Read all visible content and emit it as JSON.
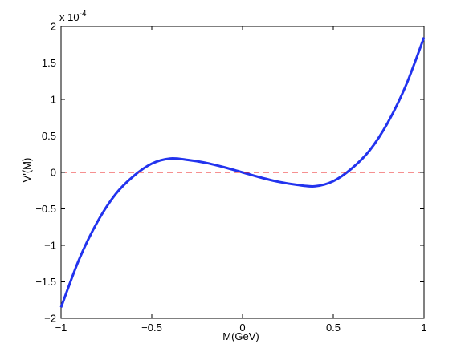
{
  "chart_data": {
    "type": "line",
    "title": "",
    "xlabel": "M(GeV)",
    "ylabel": "V'(M)",
    "exponent_label": "x 10",
    "exponent_power": "-4",
    "xlim": [
      -1,
      1
    ],
    "ylim": [
      -2,
      2
    ],
    "x_ticks": [
      -1,
      -0.5,
      0,
      0.5,
      1
    ],
    "x_tick_labels": [
      "−1",
      "−0.5",
      "0",
      "0.5",
      "1"
    ],
    "y_ticks": [
      -2,
      -1.5,
      -1,
      -0.5,
      0,
      0.5,
      1,
      1.5,
      2
    ],
    "y_tick_labels": [
      "−2",
      "−1.5",
      "−1",
      "−0.5",
      "0",
      "0.5",
      "1",
      "1.5",
      "2"
    ],
    "grid": false,
    "series": [
      {
        "color": "#2233ee",
        "style": "solid",
        "x": [
          -1.0,
          -0.9,
          -0.8,
          -0.7,
          -0.6,
          -0.5,
          -0.4,
          -0.3,
          -0.2,
          -0.1,
          0.0,
          0.1,
          0.2,
          0.3,
          0.4,
          0.5,
          0.6,
          0.7,
          0.8,
          0.9,
          1.0
        ],
        "y": [
          -1.85,
          -1.19,
          -0.68,
          -0.3,
          -0.05,
          0.12,
          0.19,
          0.17,
          0.13,
          0.07,
          0.0,
          -0.07,
          -0.13,
          -0.17,
          -0.19,
          -0.12,
          0.05,
          0.3,
          0.68,
          1.19,
          1.85
        ]
      },
      {
        "color": "#ee2222",
        "style": "dashed",
        "x": [
          -1,
          1
        ],
        "y": [
          0,
          0
        ]
      }
    ]
  }
}
